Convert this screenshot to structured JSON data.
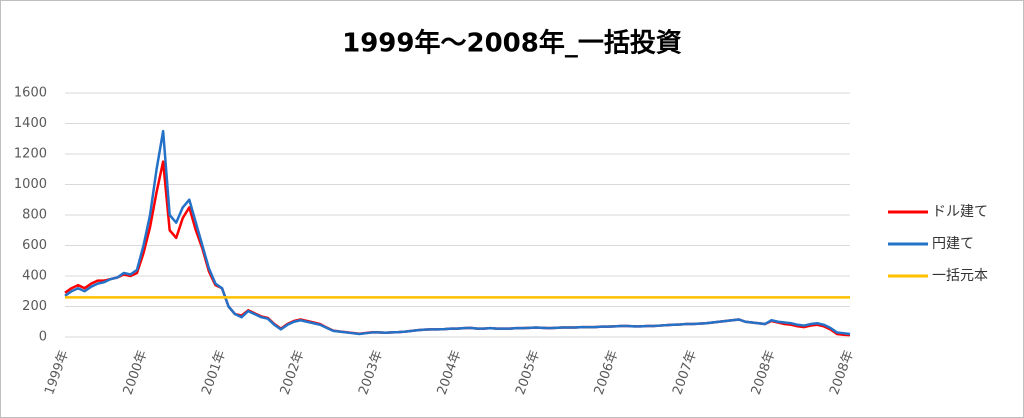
{
  "chart_data": {
    "type": "line",
    "title": "1999年～2008年_一括投資",
    "categories": [
      "1999年",
      null,
      null,
      null,
      null,
      null,
      null,
      null,
      null,
      null,
      null,
      null,
      "2000年",
      null,
      null,
      null,
      null,
      null,
      null,
      null,
      null,
      null,
      null,
      null,
      "2001年",
      null,
      null,
      null,
      null,
      null,
      null,
      null,
      null,
      null,
      null,
      null,
      "2002年",
      null,
      null,
      null,
      null,
      null,
      null,
      null,
      null,
      null,
      null,
      null,
      "2003年",
      null,
      null,
      null,
      null,
      null,
      null,
      null,
      null,
      null,
      null,
      null,
      "2004年",
      null,
      null,
      null,
      null,
      null,
      null,
      null,
      null,
      null,
      null,
      null,
      "2005年",
      null,
      null,
      null,
      null,
      null,
      null,
      null,
      null,
      null,
      null,
      null,
      "2006年",
      null,
      null,
      null,
      null,
      null,
      null,
      null,
      null,
      null,
      null,
      null,
      "2007年",
      null,
      null,
      null,
      null,
      null,
      null,
      null,
      null,
      null,
      null,
      null,
      "2008年",
      null,
      null,
      null,
      null,
      null,
      null,
      null,
      null,
      null,
      null,
      null,
      "2008年"
    ],
    "series": [
      {
        "name": "ドル建て",
        "color": "#ff0000",
        "values": [
          290,
          320,
          340,
          320,
          350,
          370,
          370,
          380,
          390,
          410,
          400,
          420,
          550,
          720,
          950,
          1150,
          700,
          650,
          780,
          850,
          700,
          580,
          430,
          340,
          320,
          200,
          150,
          140,
          175,
          155,
          135,
          125,
          85,
          55,
          85,
          105,
          115,
          105,
          95,
          85,
          62,
          42,
          36,
          31,
          26,
          21,
          26,
          31,
          30,
          28,
          30,
          32,
          35,
          40,
          45,
          48,
          50,
          50,
          52,
          55,
          55,
          58,
          60,
          55,
          55,
          58,
          55,
          55,
          55,
          58,
          58,
          60,
          62,
          60,
          58,
          60,
          62,
          62,
          62,
          65,
          65,
          65,
          68,
          68,
          70,
          72,
          72,
          70,
          70,
          72,
          72,
          75,
          78,
          80,
          82,
          85,
          85,
          88,
          90,
          95,
          100,
          105,
          110,
          115,
          100,
          95,
          90,
          85,
          105,
          95,
          85,
          80,
          70,
          65,
          75,
          80,
          70,
          50,
          20,
          15,
          12
        ]
      },
      {
        "name": "円建て",
        "color": "#2472c8",
        "values": [
          270,
          300,
          320,
          300,
          330,
          350,
          360,
          380,
          390,
          420,
          410,
          440,
          600,
          800,
          1100,
          1350,
          800,
          750,
          850,
          900,
          750,
          600,
          450,
          350,
          320,
          200,
          150,
          130,
          170,
          150,
          130,
          120,
          80,
          50,
          80,
          100,
          110,
          100,
          90,
          80,
          60,
          40,
          35,
          30,
          25,
          20,
          25,
          30,
          30,
          28,
          30,
          32,
          35,
          40,
          45,
          48,
          50,
          50,
          52,
          55,
          55,
          58,
          60,
          55,
          55,
          58,
          55,
          55,
          55,
          58,
          58,
          60,
          62,
          60,
          58,
          60,
          62,
          62,
          62,
          65,
          65,
          65,
          68,
          68,
          70,
          72,
          72,
          70,
          70,
          72,
          72,
          75,
          78,
          80,
          82,
          85,
          85,
          88,
          90,
          95,
          100,
          105,
          110,
          115,
          100,
          95,
          90,
          85,
          110,
          100,
          95,
          90,
          80,
          75,
          85,
          90,
          80,
          60,
          30,
          25,
          20
        ]
      },
      {
        "name": "一括元本",
        "color": "#ffc000",
        "values": [
          260,
          260,
          260,
          260,
          260,
          260,
          260,
          260,
          260,
          260,
          260,
          260,
          260,
          260,
          260,
          260,
          260,
          260,
          260,
          260,
          260,
          260,
          260,
          260,
          260,
          260,
          260,
          260,
          260,
          260,
          260,
          260,
          260,
          260,
          260,
          260,
          260,
          260,
          260,
          260,
          260,
          260,
          260,
          260,
          260,
          260,
          260,
          260,
          260,
          260,
          260,
          260,
          260,
          260,
          260,
          260,
          260,
          260,
          260,
          260,
          260,
          260,
          260,
          260,
          260,
          260,
          260,
          260,
          260,
          260,
          260,
          260,
          260,
          260,
          260,
          260,
          260,
          260,
          260,
          260,
          260,
          260,
          260,
          260,
          260,
          260,
          260,
          260,
          260,
          260,
          260,
          260,
          260,
          260,
          260,
          260,
          260,
          260,
          260,
          260,
          260,
          260,
          260,
          260,
          260,
          260,
          260,
          260,
          260,
          260,
          260,
          260,
          260,
          260,
          260,
          260,
          260,
          260,
          260,
          260,
          260
        ]
      }
    ],
    "ylim": [
      0,
      1600
    ],
    "yticks": [
      0,
      200,
      400,
      600,
      800,
      1000,
      1200,
      1400,
      1600
    ],
    "grid": true,
    "legend": "right"
  }
}
